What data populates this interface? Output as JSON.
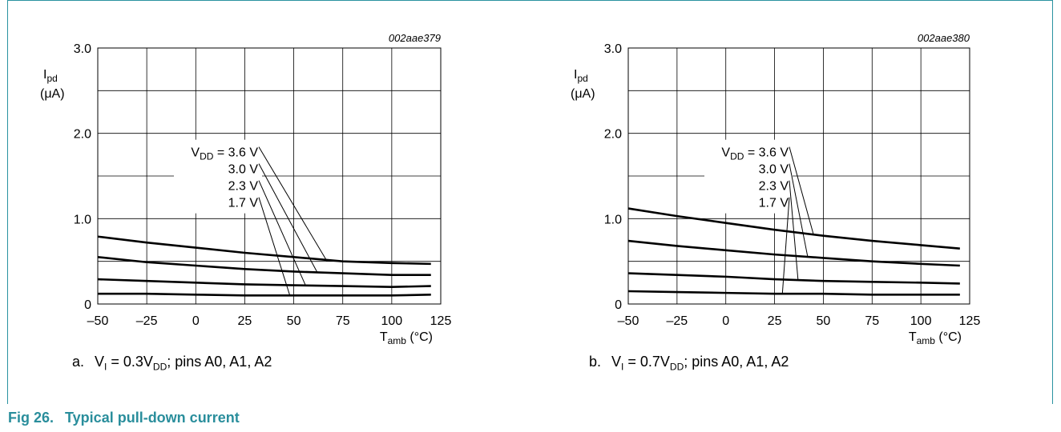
{
  "figure": {
    "number": "Fig 26.",
    "title": "Typical pull-down current",
    "accent_color": "#2a8e9c"
  },
  "chart_data": [
    {
      "type": "line",
      "id_label": "002aae379",
      "subcaption": {
        "letter": "a.",
        "vi_text": "V",
        "vi_sub": "I",
        "vi_rest": " = 0.3V",
        "vdd_sub": "DD",
        "tail": "; pins A0, A1, A2"
      },
      "ylabel": {
        "symbol": "I",
        "sub": "pd",
        "unit": "(μA)"
      },
      "xlabel": {
        "symbol": "T",
        "sub": "amb",
        "unit": " (°C)"
      },
      "xlim": [
        -50,
        125
      ],
      "ylim": [
        0,
        3.0
      ],
      "xticks": [
        -50,
        -25,
        0,
        25,
        50,
        75,
        100,
        125
      ],
      "xtick_labels": [
        "–50",
        "–25",
        "0",
        "25",
        "50",
        "75",
        "100",
        "125"
      ],
      "yticks": [
        0,
        1.0,
        2.0,
        3.0
      ],
      "ytick_labels": [
        "0",
        "1.0",
        "2.0",
        "3.0"
      ],
      "grid": true,
      "legend_labels": [
        {
          "prefix": "V",
          "sub": "DD",
          "text": " = 3.6 V"
        },
        {
          "prefix": "",
          "sub": "",
          "text": "3.0 V"
        },
        {
          "prefix": "",
          "sub": "",
          "text": "2.3 V"
        },
        {
          "prefix": "",
          "sub": "",
          "text": "1.7 V"
        }
      ],
      "series": [
        {
          "name": "3.6 V",
          "x": [
            -50,
            -25,
            0,
            25,
            50,
            75,
            100,
            120
          ],
          "y": [
            0.79,
            0.72,
            0.66,
            0.6,
            0.55,
            0.5,
            0.48,
            0.47
          ],
          "label_target": [
            67,
            0.5
          ]
        },
        {
          "name": "3.0 V",
          "x": [
            -50,
            -25,
            0,
            25,
            50,
            75,
            100,
            120
          ],
          "y": [
            0.55,
            0.49,
            0.45,
            0.41,
            0.38,
            0.36,
            0.34,
            0.34
          ],
          "label_target": [
            62,
            0.37
          ]
        },
        {
          "name": "2.3 V",
          "x": [
            -50,
            -25,
            0,
            25,
            50,
            75,
            100,
            120
          ],
          "y": [
            0.29,
            0.27,
            0.25,
            0.23,
            0.22,
            0.21,
            0.2,
            0.21
          ],
          "label_target": [
            56,
            0.22
          ]
        },
        {
          "name": "1.7 V",
          "x": [
            -50,
            -25,
            0,
            25,
            50,
            75,
            100,
            120
          ],
          "y": [
            0.12,
            0.12,
            0.11,
            0.1,
            0.1,
            0.1,
            0.1,
            0.11
          ],
          "label_target": [
            48,
            0.1
          ]
        }
      ]
    },
    {
      "type": "line",
      "id_label": "002aae380",
      "subcaption": {
        "letter": "b.",
        "vi_text": "V",
        "vi_sub": "I",
        "vi_rest": " = 0.7V",
        "vdd_sub": "DD",
        "tail": "; pins A0, A1, A2"
      },
      "ylabel": {
        "symbol": "I",
        "sub": "pd",
        "unit": "(μA)"
      },
      "xlabel": {
        "symbol": "T",
        "sub": "amb",
        "unit": " (°C)"
      },
      "xlim": [
        -50,
        125
      ],
      "ylim": [
        0,
        3.0
      ],
      "xticks": [
        -50,
        -25,
        0,
        25,
        50,
        75,
        100,
        125
      ],
      "xtick_labels": [
        "–50",
        "–25",
        "0",
        "25",
        "50",
        "75",
        "100",
        "125"
      ],
      "yticks": [
        0,
        1.0,
        2.0,
        3.0
      ],
      "ytick_labels": [
        "0",
        "1.0",
        "2.0",
        "3.0"
      ],
      "grid": true,
      "legend_labels": [
        {
          "prefix": "V",
          "sub": "DD",
          "text": " = 3.6 V"
        },
        {
          "prefix": "",
          "sub": "",
          "text": "3.0 V"
        },
        {
          "prefix": "",
          "sub": "",
          "text": "2.3 V"
        },
        {
          "prefix": "",
          "sub": "",
          "text": "1.7 V"
        }
      ],
      "series": [
        {
          "name": "3.6 V",
          "x": [
            -50,
            -25,
            0,
            25,
            50,
            75,
            100,
            120
          ],
          "y": [
            1.12,
            1.03,
            0.95,
            0.87,
            0.8,
            0.74,
            0.69,
            0.65
          ],
          "label_target": [
            45,
            0.81
          ]
        },
        {
          "name": "3.0 V",
          "x": [
            -50,
            -25,
            0,
            25,
            50,
            75,
            100,
            120
          ],
          "y": [
            0.74,
            0.68,
            0.63,
            0.58,
            0.54,
            0.5,
            0.47,
            0.45
          ],
          "label_target": [
            42,
            0.55
          ]
        },
        {
          "name": "2.3 V",
          "x": [
            -50,
            -25,
            0,
            25,
            50,
            75,
            100,
            120
          ],
          "y": [
            0.36,
            0.34,
            0.32,
            0.29,
            0.27,
            0.26,
            0.25,
            0.24
          ],
          "label_target": [
            37,
            0.29
          ]
        },
        {
          "name": "1.7 V",
          "x": [
            -50,
            -25,
            0,
            25,
            50,
            75,
            100,
            120
          ],
          "y": [
            0.15,
            0.14,
            0.13,
            0.12,
            0.12,
            0.11,
            0.11,
            0.11
          ],
          "label_target": [
            29,
            0.12
          ]
        }
      ]
    }
  ]
}
